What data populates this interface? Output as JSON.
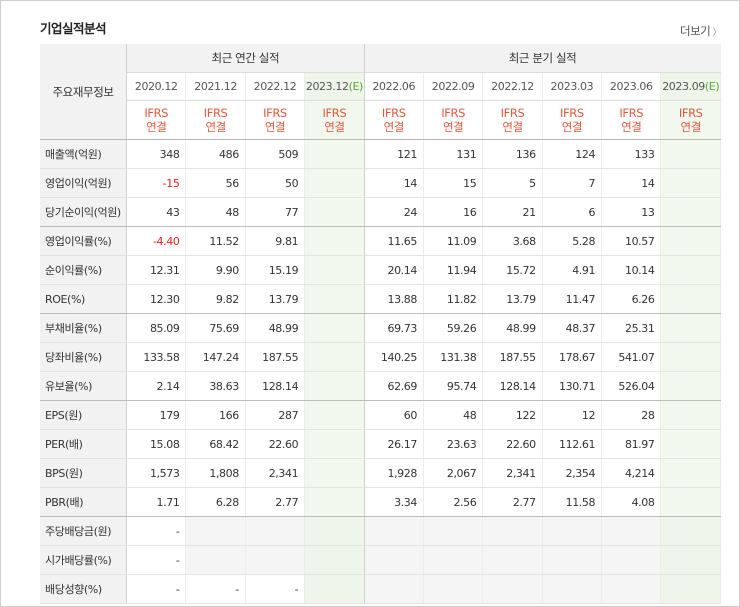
{
  "section_title": "기업실적분석",
  "more_label": "더보기",
  "header": {
    "row_label": "주요재무정보",
    "annual_group": "최근 연간 실적",
    "quarter_group": "최근 분기 실적",
    "annual_periods": [
      "2020.12",
      "2021.12",
      "2022.12",
      "2023.12"
    ],
    "quarter_periods": [
      "2022.06",
      "2022.09",
      "2022.12",
      "2023.03",
      "2023.06",
      "2023.09"
    ],
    "estimate_mark": "(E)",
    "ifrs": "IFRS",
    "consolidated": "연결"
  },
  "rows": [
    {
      "label": "매출액(억원)",
      "annual": [
        "348",
        "486",
        "509",
        ""
      ],
      "quarter": [
        "121",
        "131",
        "136",
        "124",
        "133",
        ""
      ]
    },
    {
      "label": "영업이익(억원)",
      "annual": [
        "-15",
        "56",
        "50",
        ""
      ],
      "quarter": [
        "14",
        "15",
        "5",
        "7",
        "14",
        ""
      ]
    },
    {
      "label": "당기순이익(억원)",
      "annual": [
        "43",
        "48",
        "77",
        ""
      ],
      "quarter": [
        "24",
        "16",
        "21",
        "6",
        "13",
        ""
      ]
    },
    {
      "label": "영업이익률(%)",
      "annual": [
        "-4.40",
        "11.52",
        "9.81",
        ""
      ],
      "quarter": [
        "11.65",
        "11.09",
        "3.68",
        "5.28",
        "10.57",
        ""
      ]
    },
    {
      "label": "순이익률(%)",
      "annual": [
        "12.31",
        "9.90",
        "15.19",
        ""
      ],
      "quarter": [
        "20.14",
        "11.94",
        "15.72",
        "4.91",
        "10.14",
        ""
      ]
    },
    {
      "label": "ROE(%)",
      "annual": [
        "12.30",
        "9.82",
        "13.79",
        ""
      ],
      "quarter": [
        "13.88",
        "11.82",
        "13.79",
        "11.47",
        "6.26",
        ""
      ]
    },
    {
      "label": "부채비율(%)",
      "annual": [
        "85.09",
        "75.69",
        "48.99",
        ""
      ],
      "quarter": [
        "69.73",
        "59.26",
        "48.99",
        "48.37",
        "25.31",
        ""
      ]
    },
    {
      "label": "당좌비율(%)",
      "annual": [
        "133.58",
        "147.24",
        "187.55",
        ""
      ],
      "quarter": [
        "140.25",
        "131.38",
        "187.55",
        "178.67",
        "541.07",
        ""
      ]
    },
    {
      "label": "유보율(%)",
      "annual": [
        "2.14",
        "38.63",
        "128.14",
        ""
      ],
      "quarter": [
        "62.69",
        "95.74",
        "128.14",
        "130.71",
        "526.04",
        ""
      ]
    },
    {
      "label": "EPS(원)",
      "annual": [
        "179",
        "166",
        "287",
        ""
      ],
      "quarter": [
        "60",
        "48",
        "122",
        "12",
        "28",
        ""
      ]
    },
    {
      "label": "PER(배)",
      "annual": [
        "15.08",
        "68.42",
        "22.60",
        ""
      ],
      "quarter": [
        "26.17",
        "23.63",
        "22.60",
        "112.61",
        "81.97",
        ""
      ]
    },
    {
      "label": "BPS(원)",
      "annual": [
        "1,573",
        "1,808",
        "2,341",
        ""
      ],
      "quarter": [
        "1,928",
        "2,067",
        "2,341",
        "2,354",
        "4,214",
        ""
      ]
    },
    {
      "label": "PBR(배)",
      "annual": [
        "1.71",
        "6.28",
        "2.77",
        ""
      ],
      "quarter": [
        "3.34",
        "2.56",
        "2.77",
        "11.58",
        "4.08",
        ""
      ]
    },
    {
      "label": "주당배당금(원)",
      "annual": [
        "-",
        "",
        "",
        ""
      ],
      "quarter": [
        "",
        "",
        "",
        "",
        "",
        ""
      ]
    },
    {
      "label": "시가배당률(%)",
      "annual": [
        "-",
        "",
        "",
        ""
      ],
      "quarter": [
        "",
        "",
        "",
        "",
        "",
        ""
      ]
    },
    {
      "label": "배당성향(%)",
      "annual": [
        "-",
        "-",
        "-",
        ""
      ],
      "quarter": [
        "",
        "",
        "",
        "",
        "",
        ""
      ]
    }
  ],
  "colors": {
    "negative": "#e02020",
    "ifrs_label": "#e0583f",
    "estimate_mark": "#5ba53a",
    "estimate_bg": "#f2f8ee"
  }
}
